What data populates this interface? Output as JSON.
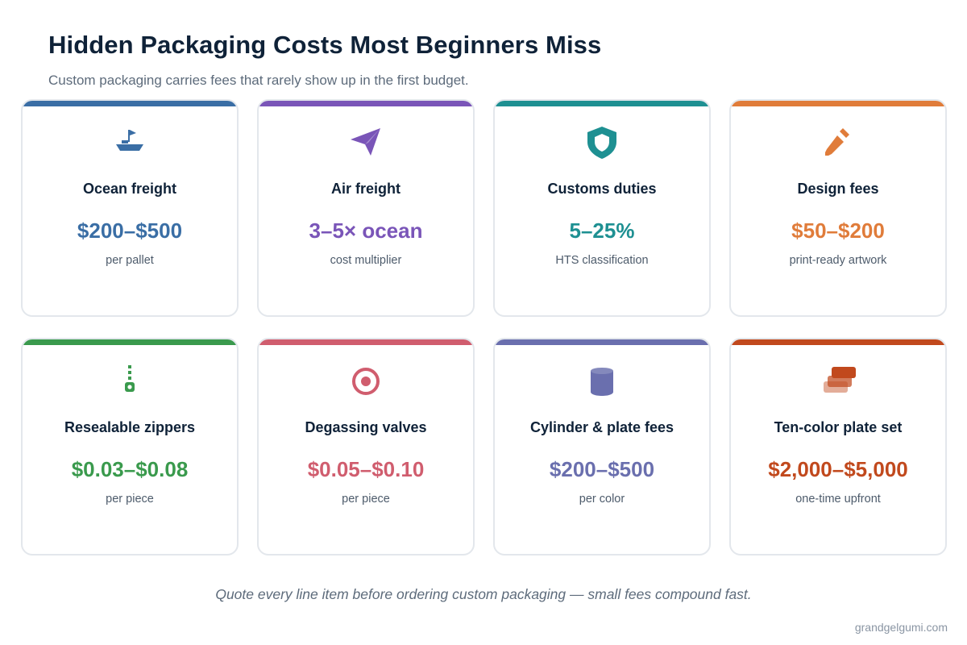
{
  "header": {
    "title": "Hidden Packaging Costs Most Beginners Miss",
    "subtitle": "Custom packaging carries fees that rarely show up in the first budget."
  },
  "cards": [
    {
      "title": "Ocean freight",
      "value": "$200–$500",
      "sub": "per pallet",
      "color": "#3a6ea5",
      "icon": "ship-icon"
    },
    {
      "title": "Air freight",
      "value": "3–5× ocean",
      "sub": "cost multiplier",
      "color": "#7a55b8",
      "icon": "paper-plane-icon"
    },
    {
      "title": "Customs duties",
      "value": "5–25%",
      "sub": "HTS classification",
      "color": "#1e9092",
      "icon": "shield-icon"
    },
    {
      "title": "Design fees",
      "value": "$50–$200",
      "sub": "print-ready artwork",
      "color": "#e07c3a",
      "icon": "pencil-icon"
    },
    {
      "title": "Resealable zippers",
      "value": "$0.03–$0.08",
      "sub": "per piece",
      "color": "#3a9a4d",
      "icon": "zipper-icon"
    },
    {
      "title": "Degassing valves",
      "value": "$0.05–$0.10",
      "sub": "per piece",
      "color": "#d05d6e",
      "icon": "valve-target-icon"
    },
    {
      "title": "Cylinder & plate fees",
      "value": "$200–$500",
      "sub": "per color",
      "color": "#6a6fae",
      "icon": "cylinder-icon"
    },
    {
      "title": "Ten-color plate set",
      "value": "$2,000–$5,000",
      "sub": "one-time upfront",
      "color": "#c1491d",
      "icon": "stacked-plates-icon"
    }
  ],
  "footer": {
    "note": "Quote every line item before ordering custom packaging — small fees compound fast.",
    "credit": "grandgelgumi.com"
  }
}
